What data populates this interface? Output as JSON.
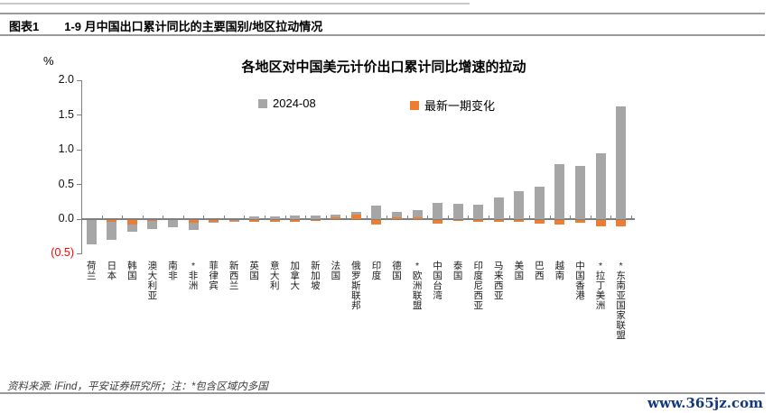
{
  "header": {
    "figure_label": "图表1",
    "title": "1-9 月中国出口累计同比的主要国别/地区拉动情况"
  },
  "chart_data": {
    "type": "bar",
    "title": "各地区对中国美元计价出口累计同比增速的拉动",
    "unit_label": "%",
    "ylim": [
      -0.5,
      2.0
    ],
    "ytick_values": [
      2.0,
      1.5,
      1.0,
      0.5,
      0.0,
      -0.5
    ],
    "ytick_labels": [
      "2.0",
      "1.5",
      "1.0",
      "0.5",
      "0.0",
      "(0.5)"
    ],
    "grid": false,
    "legend_position": "top",
    "legend": [
      {
        "label": "2024-08",
        "color": "#a6a6a6"
      },
      {
        "label": "最新一期变化",
        "color": "#ed7d31"
      }
    ],
    "categories": [
      "荷兰",
      "日本",
      "韩国",
      "澳大利亚",
      "南非",
      "*非洲",
      "菲律宾",
      "新西兰",
      "英国",
      "意大利",
      "加拿大",
      "新加坡",
      "法国",
      "俄罗斯联邦",
      "印度",
      "德国",
      "*欧洲联盟",
      "中国台湾",
      "泰国",
      "印度尼西亚",
      "马来西亚",
      "美国",
      "巴西",
      "越南",
      "中国香港",
      "*拉丁美洲",
      "*东南亚国家联盟"
    ],
    "series": [
      {
        "name": "2024-08",
        "color": "#a6a6a6",
        "values": [
          -0.35,
          -0.29,
          -0.17,
          -0.13,
          -0.11,
          -0.14,
          -0.04,
          -0.02,
          0.04,
          0.04,
          0.05,
          0.05,
          0.07,
          0.1,
          0.19,
          0.11,
          0.13,
          0.23,
          0.22,
          0.21,
          0.31,
          0.4,
          0.47,
          0.8,
          0.77,
          0.95,
          1.63
        ]
      },
      {
        "name": "最新一期变化",
        "color": "#ed7d31",
        "values": [
          0,
          -0.02,
          -0.07,
          -0.01,
          0,
          -0.04,
          -0.02,
          -0.01,
          -0.03,
          -0.02,
          -0.03,
          -0.01,
          0.03,
          0.07,
          -0.07,
          0.03,
          0.03,
          -0.05,
          -0.01,
          -0.02,
          -0.02,
          -0.03,
          -0.05,
          -0.07,
          -0.04,
          -0.09,
          -0.09
        ]
      }
    ]
  },
  "footer": {
    "source": "资料来源: iFind，平安证券研究所；注：*包含区域内多国",
    "watermark": "www.365jz.com"
  }
}
